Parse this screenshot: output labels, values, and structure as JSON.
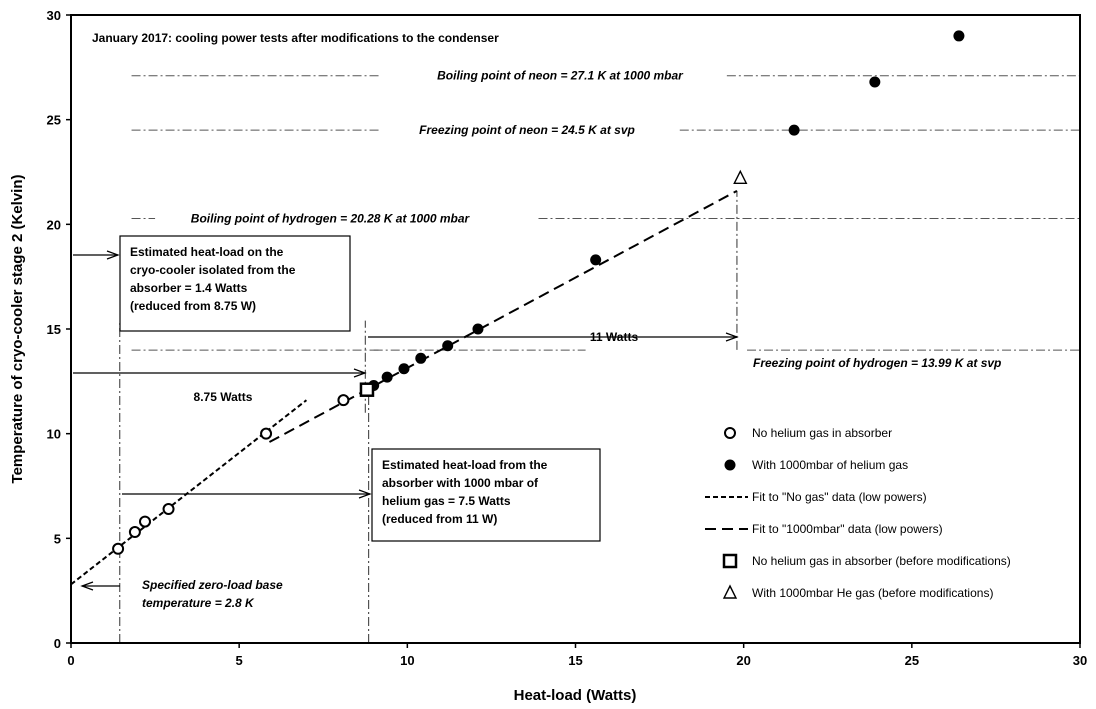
{
  "chart_data": {
    "type": "scatter",
    "title": "January 2017: cooling power tests after modifications to the condenser",
    "xlabel": "Heat-load (Watts)",
    "ylabel": "Temperature of cryo-cooler stage 2 (Kelvin)",
    "xlim": [
      0,
      30
    ],
    "ylim": [
      0,
      30
    ],
    "x_ticks": [
      "0",
      "5",
      "10",
      "15",
      "20",
      "25",
      "30"
    ],
    "y_ticks": [
      "0",
      "5",
      "10",
      "15",
      "20",
      "25",
      "30"
    ],
    "grid": false,
    "legend_position": "lower-right",
    "series": [
      {
        "name": "No helium gas in absorber",
        "marker": "open-circle",
        "points": [
          [
            1.4,
            4.5
          ],
          [
            1.9,
            5.3
          ],
          [
            2.2,
            5.8
          ],
          [
            2.9,
            6.4
          ],
          [
            5.8,
            10.0
          ],
          [
            8.1,
            11.6
          ]
        ]
      },
      {
        "name": "With 1000mbar of helium gas",
        "marker": "filled-circle",
        "points": [
          [
            9.0,
            12.3
          ],
          [
            9.4,
            12.7
          ],
          [
            9.9,
            13.1
          ],
          [
            10.4,
            13.6
          ],
          [
            11.2,
            14.2
          ],
          [
            12.1,
            15.0
          ],
          [
            15.6,
            18.3
          ],
          [
            21.5,
            24.5
          ],
          [
            23.9,
            26.8
          ],
          [
            26.4,
            29.0
          ]
        ]
      },
      {
        "name": "Fit to \"No gas\" data (low powers)",
        "line": "short-dash",
        "points": [
          [
            0,
            2.8
          ],
          [
            7.0,
            11.6
          ]
        ]
      },
      {
        "name": "Fit to \"1000mbar\" data (low powers)",
        "line": "long-dash",
        "points": [
          [
            5.9,
            9.6
          ],
          [
            19.8,
            21.6
          ]
        ]
      },
      {
        "name": "No helium gas in absorber (before modifications)",
        "marker": "open-square",
        "points": [
          [
            8.8,
            12.1
          ]
        ]
      },
      {
        "name": "With 1000mbar He gas (before modifications)",
        "marker": "open-triangle",
        "points": [
          [
            19.9,
            22.2
          ]
        ]
      }
    ],
    "reference_lines": [
      {
        "label": "Boiling point of neon = 27.1 K at 1000 mbar",
        "y": 27.1
      },
      {
        "label": "Freezing point of neon = 24.5 K at svp",
        "y": 24.5
      },
      {
        "label": "Boiling point of hydrogen = 20.28 K at 1000 mbar",
        "y": 20.28
      },
      {
        "label": "Freezing point of hydrogen = 13.99 K at svp",
        "y": 13.99
      }
    ],
    "annotations": {
      "box1_lines": [
        "Estimated heat-load on the",
        "cryo-cooler isolated from the",
        "absorber = 1.4 Watts",
        "(reduced from 8.75 W)"
      ],
      "box2_lines": [
        "Estimated heat-load from the",
        "absorber with 1000 mbar of",
        "helium gas = 7.5 Watts",
        "(reduced from 11 W)"
      ],
      "watts_11": "11 Watts",
      "watts_875": "8.75 Watts",
      "base_lines": [
        "Specified zero-load base",
        "temperature = 2.8 K"
      ]
    }
  }
}
